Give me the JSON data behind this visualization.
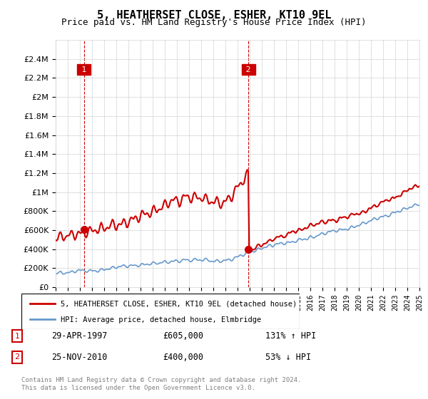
{
  "title": "5, HEATHERSET CLOSE, ESHER, KT10 9EL",
  "subtitle": "Price paid vs. HM Land Registry's House Price Index (HPI)",
  "legend_line1": "5, HEATHERSET CLOSE, ESHER, KT10 9EL (detached house)",
  "legend_line2": "HPI: Average price, detached house, Elmbridge",
  "transaction1_date": "29-APR-1997",
  "transaction1_price": "£605,000",
  "transaction1_hpi": "131% ↑ HPI",
  "transaction2_date": "25-NOV-2010",
  "transaction2_price": "£400,000",
  "transaction2_hpi": "53% ↓ HPI",
  "footer": "Contains HM Land Registry data © Crown copyright and database right 2024.\nThis data is licensed under the Open Government Licence v3.0.",
  "line1_color": "#cc0000",
  "line2_color": "#6699cc",
  "vline_color": "#cc0000",
  "annotation_box_color": "#cc0000",
  "year_start": 1995,
  "year_end": 2025,
  "ylim_min": 0,
  "ylim_max": 2600000,
  "yticks": [
    0,
    200000,
    400000,
    600000,
    800000,
    1000000,
    1200000,
    1400000,
    1600000,
    1800000,
    2000000,
    2200000,
    2400000
  ],
  "transaction1_year": 1997.33,
  "transaction2_year": 2010.9,
  "transaction1_price_val": 605000,
  "transaction2_price_val": 400000
}
